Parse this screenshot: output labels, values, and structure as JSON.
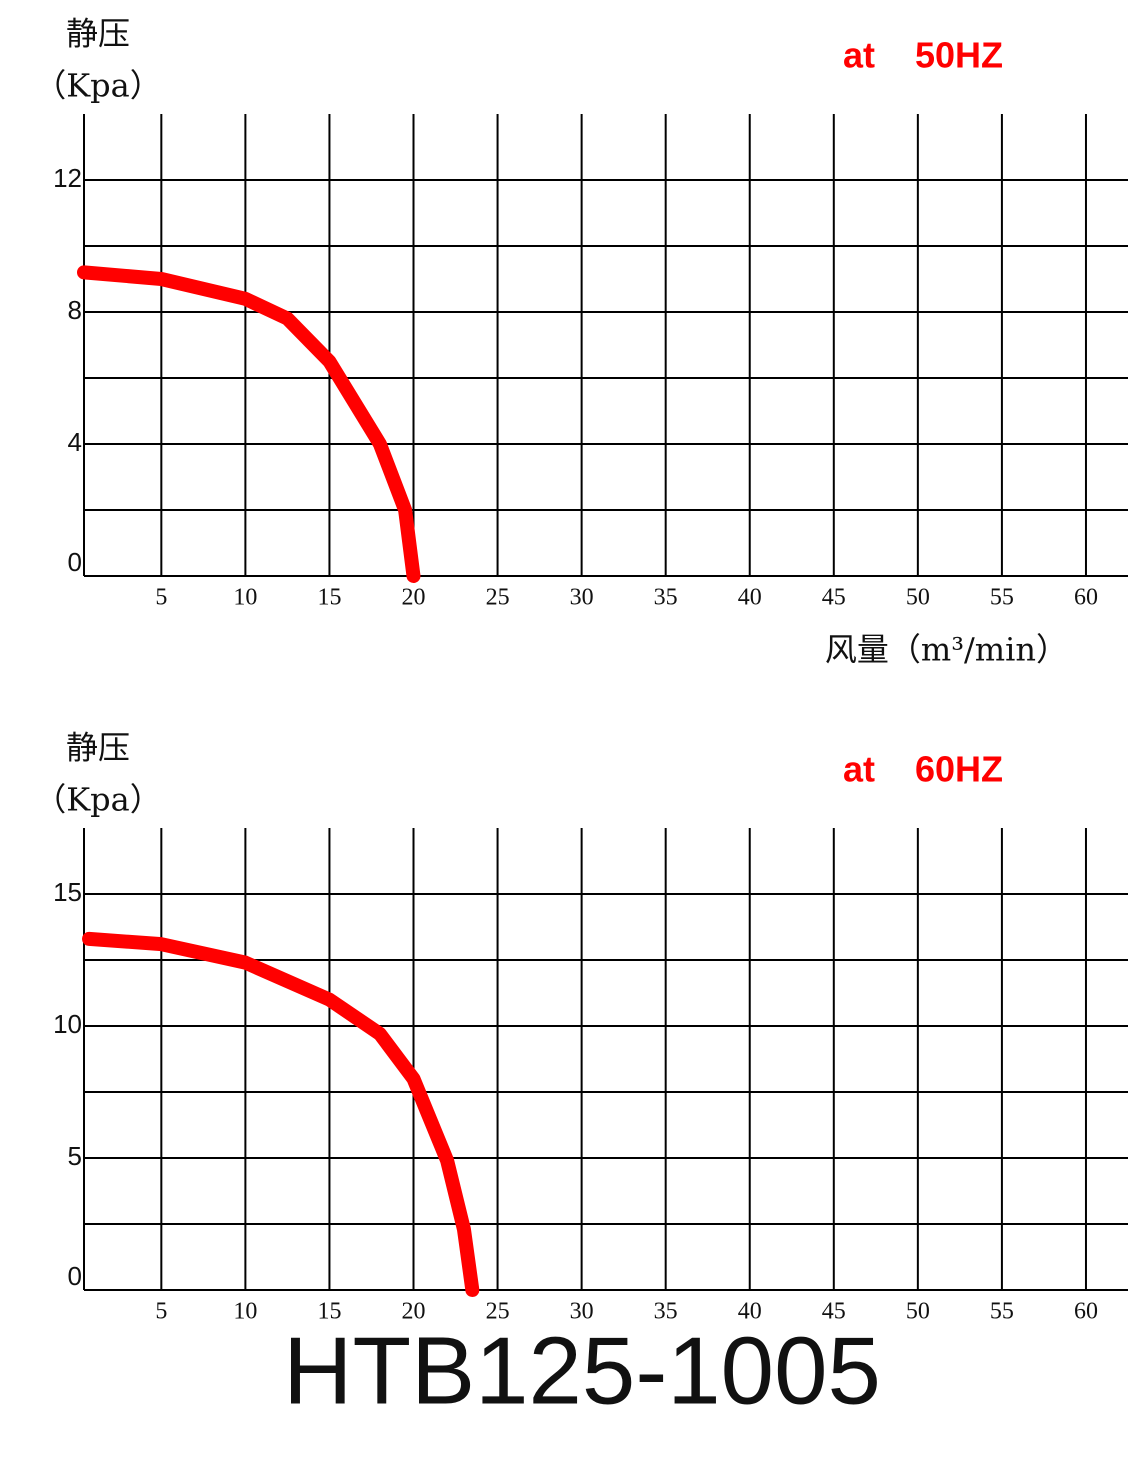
{
  "title": "HTB125-1005",
  "chart_data": [
    {
      "type": "line",
      "annotation": "at    50HZ",
      "ylabel": [
        "静压",
        "（Kpa）"
      ],
      "xlabel": "风量（m³/min）",
      "x": [
        0.4,
        5,
        10,
        12.5,
        15,
        18,
        19.5,
        20
      ],
      "series": [
        {
          "color": "#ff0000",
          "values": [
            9.2,
            9.0,
            8.4,
            7.8,
            6.5,
            4.0,
            2.0,
            0
          ]
        }
      ],
      "xlim": [
        0.4,
        62.5
      ],
      "xticks": [
        5,
        10,
        15,
        20,
        25,
        30,
        35,
        40,
        45,
        50,
        55,
        60
      ],
      "ylim": [
        0,
        14
      ],
      "yticks": [
        0,
        4,
        8,
        12
      ],
      "yminor": [
        2,
        6,
        10
      ],
      "grid": true
    },
    {
      "type": "line",
      "annotation": "at    60HZ",
      "ylabel": [
        "静压",
        "（Kpa）"
      ],
      "x": [
        0.7,
        5,
        10,
        15,
        18,
        20,
        22,
        23,
        23.5
      ],
      "series": [
        {
          "color": "#ff0000",
          "values": [
            13.3,
            13.1,
            12.4,
            11.0,
            9.7,
            8.0,
            4.9,
            2.3,
            0
          ]
        }
      ],
      "xlim": [
        0.4,
        62.5
      ],
      "xticks": [
        5,
        10,
        15,
        20,
        25,
        30,
        35,
        40,
        45,
        50,
        55,
        60
      ],
      "ylim": [
        0,
        17.5
      ],
      "yticks": [
        0,
        5,
        10,
        15
      ],
      "yminor": [
        2.5,
        7.5,
        12.5
      ],
      "grid": true
    }
  ]
}
